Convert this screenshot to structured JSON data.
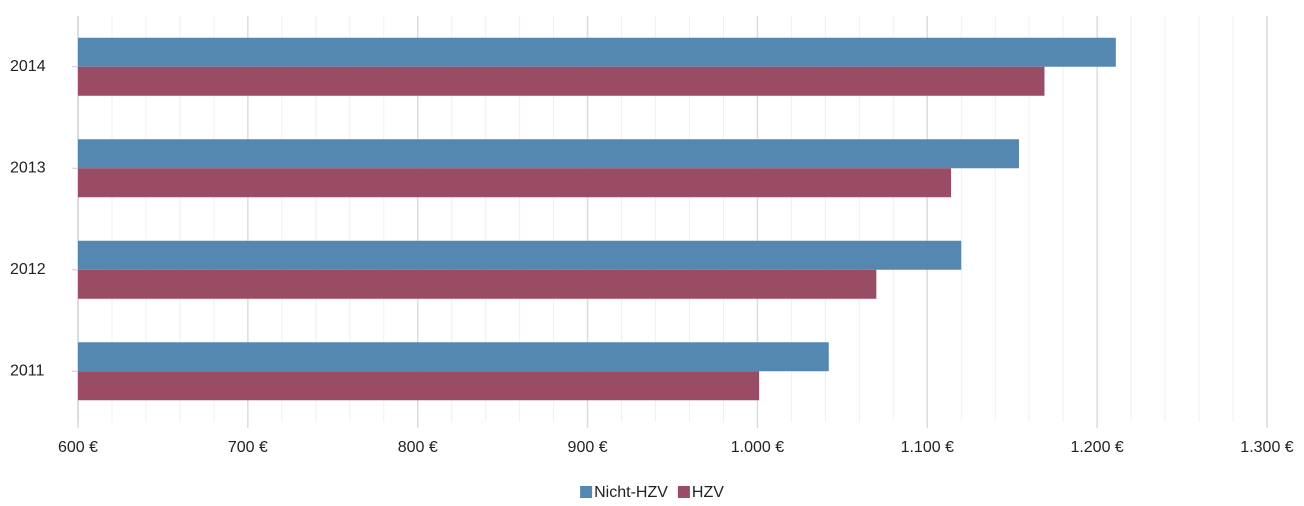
{
  "chart_data": {
    "type": "hbar",
    "categories": [
      "2014",
      "2013",
      "2012",
      "2011"
    ],
    "series": [
      {
        "name": "Nicht-HZV",
        "color": "#5588b0",
        "values": [
          1211,
          1154,
          1120,
          1042
        ]
      },
      {
        "name": "HZV",
        "color": "#994c63",
        "values": [
          1169,
          1114,
          1070,
          1001
        ]
      }
    ],
    "xlim": [
      600,
      1300
    ],
    "xticks": [
      {
        "value": 600,
        "label": "600 €"
      },
      {
        "value": 700,
        "label": "700 €"
      },
      {
        "value": 800,
        "label": "800 €"
      },
      {
        "value": 900,
        "label": "900 €"
      },
      {
        "value": 1000,
        "label": "1.000 €"
      },
      {
        "value": 1100,
        "label": "1.100 €"
      },
      {
        "value": 1200,
        "label": "1.200 €"
      },
      {
        "value": 1300,
        "label": "1.300 €"
      }
    ],
    "grid": true,
    "legend": "bottom"
  }
}
